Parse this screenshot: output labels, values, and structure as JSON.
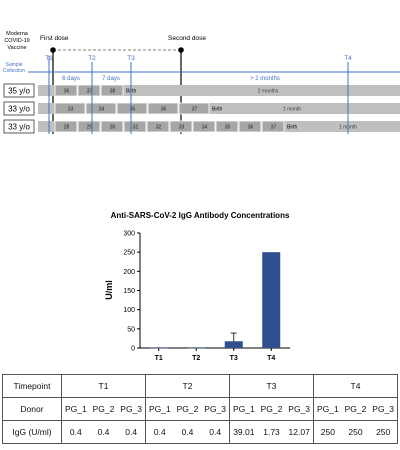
{
  "timeline": {
    "vaccine_label": [
      "Moderna",
      "COVID-19",
      "Vaccine"
    ],
    "first_dose": "First dose",
    "second_dose": "Second dose",
    "sample_label": [
      "Sample",
      "Collection"
    ],
    "timepoints": [
      "T1",
      "T2",
      "T3",
      "T4"
    ],
    "intervals": [
      "6 days",
      "7 days",
      "> 2 months"
    ],
    "donors": [
      {
        "age": "35 y/o",
        "weeks": [
          "36",
          "37",
          "38"
        ],
        "birth": "Birth",
        "after": "2 months"
      },
      {
        "age": "33 y/o",
        "weeks": [
          "33",
          "34",
          "35",
          "36",
          "37"
        ],
        "birth": "Birth",
        "after": "1 month"
      },
      {
        "age": "33 y/o",
        "weeks": [
          "28",
          "29",
          "30",
          "31",
          "32",
          "33",
          "34",
          "35",
          "36",
          "37"
        ],
        "birth": "Birth",
        "after": "1 month"
      }
    ],
    "colors": {
      "accent": "#4472c4",
      "bar": "#bfbfbf",
      "segment": "#a6a6a6"
    }
  },
  "chart_data": {
    "type": "bar",
    "title": "Anti-SARS-CoV-2 IgG Antibody Concentrations",
    "categories": [
      "T1",
      "T2",
      "T3",
      "T4"
    ],
    "values": [
      0.4,
      0.4,
      17.6,
      250
    ],
    "errors": [
      0,
      0,
      21.4,
      0
    ],
    "ylabel": "U/ml",
    "ylim": [
      0,
      300
    ],
    "yticks": [
      "0",
      "50",
      "100",
      "150",
      "200",
      "250",
      "300"
    ],
    "bar_color": "#2f4f8f"
  },
  "table": {
    "timepoint_label": "Timepoint",
    "donor_label": "Donor",
    "igg_label": "IgG (U/ml)",
    "timepoints": [
      "T1",
      "T2",
      "T3",
      "T4"
    ],
    "donors": [
      "PG_1",
      "PG_2",
      "PG_3"
    ],
    "values": [
      [
        "0.4",
        "0.4",
        "0.4"
      ],
      [
        "0.4",
        "0.4",
        "0.4"
      ],
      [
        "39.01",
        "1.73",
        "12.07"
      ],
      [
        "250",
        "250",
        "250"
      ]
    ]
  }
}
